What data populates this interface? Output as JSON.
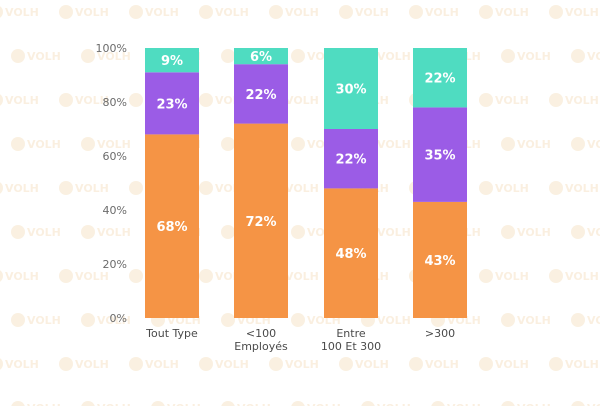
{
  "watermark": {
    "text": "VOLH"
  },
  "chart_data": {
    "type": "bar",
    "stacked": true,
    "percent": true,
    "categories": [
      [
        "Tout Type"
      ],
      [
        "<100",
        "Employés"
      ],
      [
        "Entre",
        "100 Et 300"
      ],
      [
        ">300"
      ]
    ],
    "series": [
      {
        "values": [
          68,
          72,
          48,
          43
        ],
        "color": "#f59445"
      },
      {
        "values": [
          23,
          22,
          22,
          35
        ],
        "color": "#9b5ce6"
      },
      {
        "values": [
          9,
          6,
          30,
          22
        ],
        "color": "#4fdcc1"
      }
    ],
    "value_suffix": "%",
    "yticks": [
      "0%",
      "20%",
      "40%",
      "60%",
      "80%",
      "100%"
    ],
    "ylim": [
      0,
      100
    ],
    "grid": false,
    "legend": "none"
  }
}
